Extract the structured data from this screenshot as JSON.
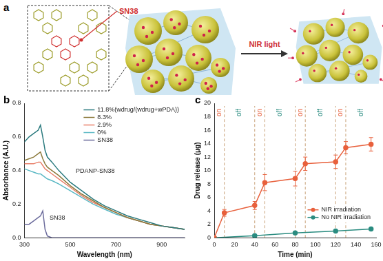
{
  "diagram": {
    "label": "a",
    "drug_label": "SN38",
    "stimulus_label": "NIR light"
  },
  "chart_data": [
    {
      "type": "line",
      "panel_label": "b",
      "x_label": "Wavelength (nm)",
      "y_label": "Absorbance (A.U.)",
      "x": [
        300,
        320,
        340,
        360,
        370,
        380,
        390,
        400,
        420,
        450,
        500,
        550,
        600,
        650,
        700,
        750,
        800,
        850,
        900,
        950,
        1000
      ],
      "series": [
        {
          "name": "11.8%(wdrug/(wdrug+wPDA))",
          "color": "#2a7a7e",
          "marker": "none",
          "values": [
            0.57,
            0.6,
            0.62,
            0.64,
            0.67,
            0.6,
            0.52,
            0.48,
            0.45,
            0.4,
            0.33,
            0.28,
            0.23,
            0.19,
            0.16,
            0.13,
            0.11,
            0.09,
            0.07,
            0.06,
            0.05
          ]
        },
        {
          "name": "8.3%",
          "color": "#8c7a3c",
          "marker": "none",
          "values": [
            0.46,
            0.47,
            0.48,
            0.5,
            0.51,
            0.47,
            0.44,
            0.42,
            0.4,
            0.37,
            0.31,
            0.26,
            0.22,
            0.18,
            0.15,
            0.12,
            0.1,
            0.08,
            0.07,
            0.06,
            0.05
          ]
        },
        {
          "name": "2.9%",
          "color": "#e8806a",
          "marker": "none",
          "values": [
            0.44,
            0.44,
            0.44,
            0.45,
            0.45,
            0.43,
            0.41,
            0.4,
            0.38,
            0.35,
            0.3,
            0.25,
            0.21,
            0.18,
            0.15,
            0.12,
            0.1,
            0.08,
            0.07,
            0.06,
            0.05
          ]
        },
        {
          "name": "0%",
          "color": "#5ab8c4",
          "marker": "none",
          "values": [
            0.41,
            0.4,
            0.39,
            0.38,
            0.38,
            0.37,
            0.36,
            0.35,
            0.34,
            0.32,
            0.28,
            0.24,
            0.2,
            0.17,
            0.14,
            0.12,
            0.1,
            0.08,
            0.07,
            0.06,
            0.05
          ]
        },
        {
          "name": "SN38",
          "color": "#6c6c9c",
          "marker": "none",
          "values": [
            0.08,
            0.08,
            0.1,
            0.12,
            0.13,
            0.16,
            0.05,
            0.01,
            0,
            0,
            0,
            0,
            0,
            0,
            0,
            0,
            0,
            0,
            0,
            0,
            0
          ]
        }
      ],
      "xlim": [
        300,
        1000
      ],
      "xticks": [
        300,
        500,
        700,
        900
      ],
      "ylim": [
        0,
        0.8
      ],
      "yticks": [
        {
          "value": 0,
          "label": "0.0"
        },
        0.2,
        0.4,
        0.6,
        0.8
      ],
      "grid": false,
      "legend": "top right",
      "annotations": [
        {
          "text": "PDANP-SN38",
          "color": "#222222"
        },
        {
          "text": "SN38",
          "color": "#222222"
        }
      ]
    },
    {
      "type": "line",
      "panel_label": "c",
      "x_label": "Time (min)",
      "y_label": "Drug release (μg)",
      "series": [
        {
          "name": "NIR irradiation",
          "color": "#e8603c",
          "marker": "circle",
          "x": [
            0,
            10,
            40,
            50,
            80,
            90,
            120,
            130,
            155
          ],
          "values": [
            0,
            3.7,
            4.8,
            8.2,
            8.8,
            11.0,
            11.3,
            13.4,
            13.9
          ],
          "error": [
            0,
            0.5,
            0.6,
            1.2,
            1.1,
            1.0,
            1.0,
            0.9,
            1.0
          ]
        },
        {
          "name": "No NIR irradiation",
          "color": "#2a8c80",
          "marker": "circle",
          "x": [
            0,
            40,
            80,
            120,
            155
          ],
          "values": [
            0,
            0.3,
            0.7,
            1.0,
            1.3
          ]
        }
      ],
      "xlim": [
        0,
        160
      ],
      "xticks": [
        0,
        20,
        40,
        60,
        80,
        100,
        120,
        140,
        160
      ],
      "ylim": [
        0,
        20
      ],
      "yticks": [
        0,
        2,
        4,
        6,
        8,
        10,
        12,
        14,
        16,
        18,
        20
      ],
      "grid": false,
      "legend": "bottom right",
      "annotations": [
        {
          "text": "on",
          "x_range": [
            0,
            10
          ],
          "color": "#e8603c"
        },
        {
          "text": "off",
          "x_range": [
            10,
            40
          ],
          "color": "#2a8c80"
        },
        {
          "text": "on",
          "x_range": [
            40,
            50
          ],
          "color": "#e8603c"
        },
        {
          "text": "off",
          "x_range": [
            50,
            80
          ],
          "color": "#2a8c80"
        },
        {
          "text": "on",
          "x_range": [
            80,
            90
          ],
          "color": "#e8603c"
        },
        {
          "text": "off",
          "x_range": [
            90,
            120
          ],
          "color": "#2a8c80"
        },
        {
          "text": "on",
          "x_range": [
            120,
            130
          ],
          "color": "#e8603c"
        },
        {
          "text": "off",
          "x_range": [
            130,
            160
          ],
          "color": "#2a8c80"
        }
      ]
    }
  ]
}
